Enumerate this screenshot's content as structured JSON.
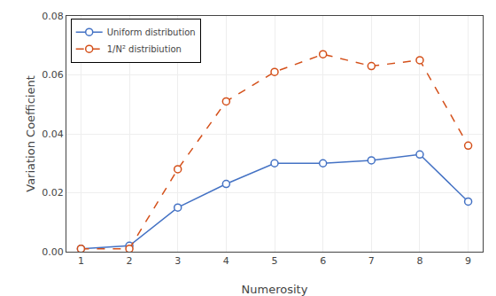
{
  "chart_data": {
    "type": "line",
    "x": [
      1,
      2,
      3,
      4,
      5,
      6,
      7,
      8,
      9
    ],
    "series": [
      {
        "name": "Uniform distribution",
        "color": "#4472C4",
        "marker": "circle",
        "line_style": "solid",
        "values": [
          0.001,
          0.002,
          0.015,
          0.023,
          0.03,
          0.03,
          0.031,
          0.033,
          0.017
        ]
      },
      {
        "name": "1/N² distribiution",
        "color": "#D4501A",
        "marker": "circle",
        "line_style": "dashed",
        "values": [
          0.001,
          0.001,
          0.028,
          0.051,
          0.061,
          0.067,
          0.063,
          0.065,
          0.036
        ]
      }
    ],
    "xlabel": "Numerosity",
    "ylabel": "Variation Coefficient",
    "xlim": [
      0.7,
      9.3
    ],
    "ylim": [
      0,
      0.08
    ],
    "xticks": [
      1,
      2,
      3,
      4,
      5,
      6,
      7,
      8,
      9
    ],
    "yticks": [
      {
        "value": 0,
        "label": "0.00"
      },
      0.02,
      0.04,
      0.06,
      0.08
    ],
    "grid": true,
    "legend": "upper left"
  }
}
